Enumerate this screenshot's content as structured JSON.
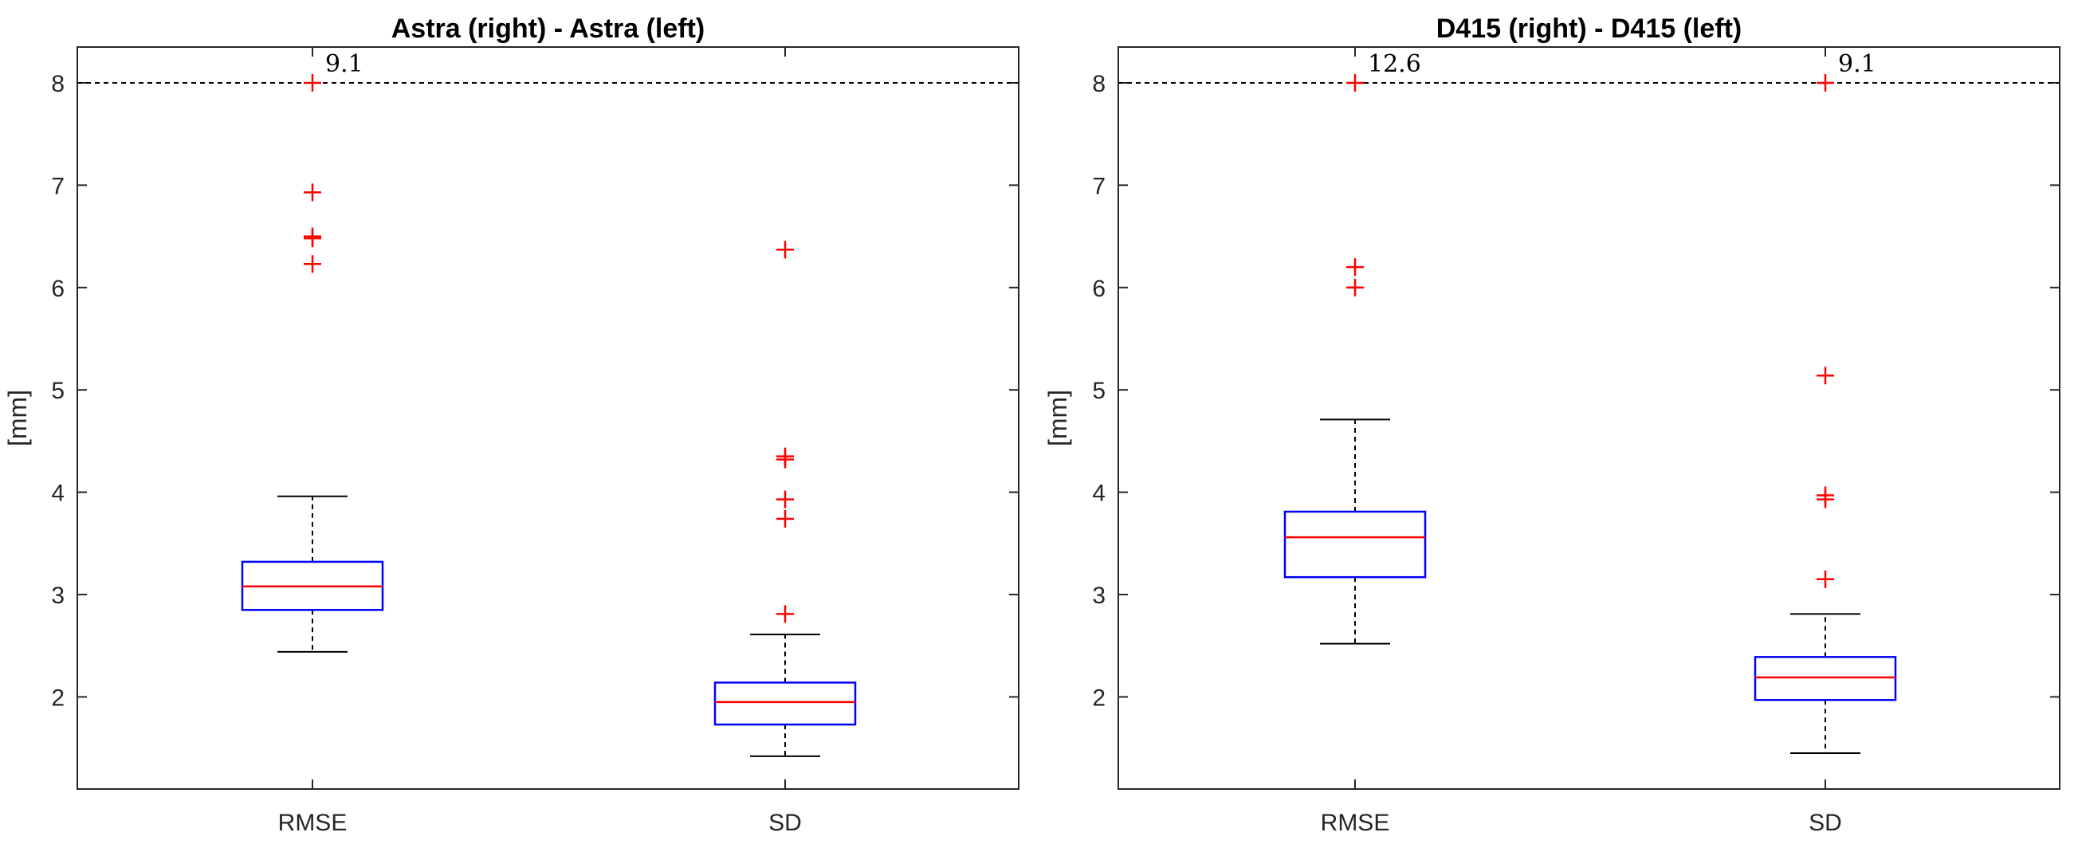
{
  "chart_data": [
    {
      "type": "boxplot",
      "title": "Astra (right) - Astra (left)",
      "ylabel": "[mm]",
      "ylim": [
        1.1,
        8.35
      ],
      "yticks": [
        2,
        3,
        4,
        5,
        6,
        7,
        8
      ],
      "categories": [
        "RMSE",
        "SD"
      ],
      "reference_line": 8,
      "boxes": [
        {
          "category": "RMSE",
          "whisker_low": 2.44,
          "q1": 2.85,
          "median": 3.08,
          "q3": 3.32,
          "whisker_high": 3.96,
          "outliers": [
            8.0,
            6.93,
            6.5,
            6.48,
            6.23
          ],
          "clipped_label": "9.1"
        },
        {
          "category": "SD",
          "whisker_low": 1.42,
          "q1": 1.73,
          "median": 1.95,
          "q3": 2.14,
          "whisker_high": 2.61,
          "outliers": [
            6.37,
            4.35,
            4.32,
            3.93,
            3.74,
            2.81
          ],
          "clipped_label": ""
        }
      ]
    },
    {
      "type": "boxplot",
      "title": "D415 (right) - D415 (left)",
      "ylabel": "[mm]",
      "ylim": [
        1.1,
        8.35
      ],
      "yticks": [
        2,
        3,
        4,
        5,
        6,
        7,
        8
      ],
      "categories": [
        "RMSE",
        "SD"
      ],
      "reference_line": 8,
      "boxes": [
        {
          "category": "RMSE",
          "whisker_low": 2.52,
          "q1": 3.17,
          "median": 3.56,
          "q3": 3.81,
          "whisker_high": 4.71,
          "outliers": [
            8.0,
            6.2,
            6.0
          ],
          "clipped_label": "12.6"
        },
        {
          "category": "SD",
          "whisker_low": 1.45,
          "q1": 1.97,
          "median": 2.19,
          "q3": 2.39,
          "whisker_high": 2.81,
          "outliers": [
            8.0,
            5.14,
            3.97,
            3.93,
            3.15
          ],
          "clipped_label": "9.1"
        }
      ]
    }
  ],
  "colors": {
    "box": "#0000ff",
    "median": "#ff0000",
    "outlier": "#ff0000",
    "whisker": "#000000",
    "axis": "#262626"
  }
}
